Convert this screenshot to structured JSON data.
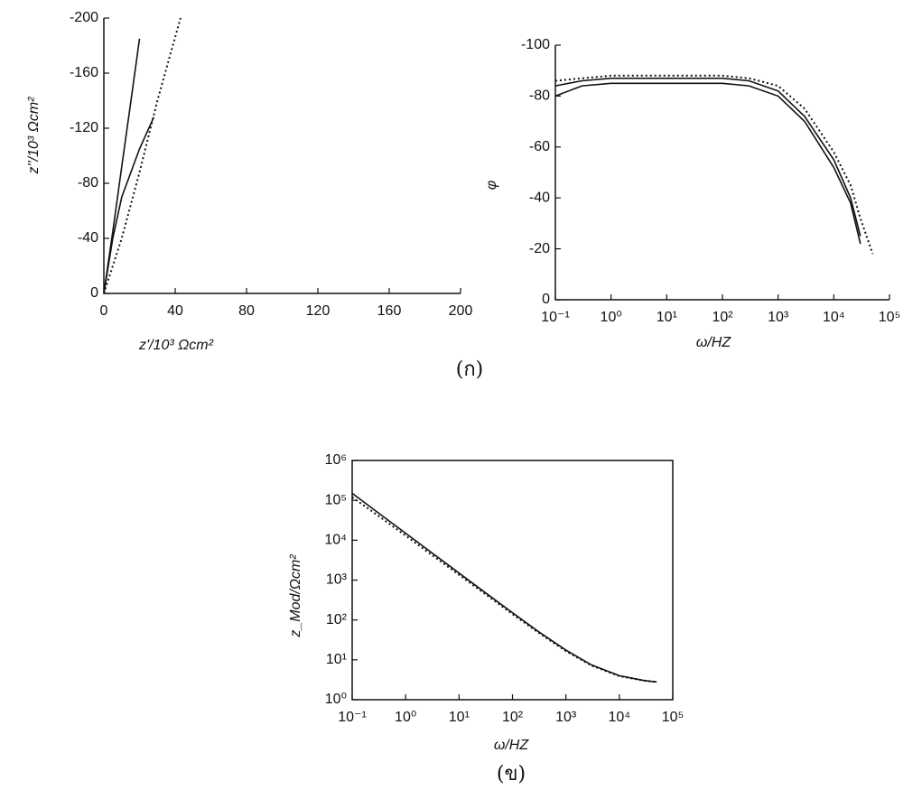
{
  "chart_data": [
    {
      "type": "line",
      "xlabel": "z'/10³ Ωcm²",
      "ylabel": "z''/10³ Ωcm²",
      "xlim": [
        0,
        200
      ],
      "xticks": [
        0,
        40,
        80,
        120,
        160,
        200
      ],
      "ylim": [
        0,
        -200
      ],
      "yticks": [
        0,
        -40,
        -80,
        -120,
        -160,
        -200
      ],
      "series": [
        {
          "color": "#111111",
          "linestyle": "solid",
          "x": [
            0,
            5,
            10,
            15,
            20
          ],
          "values": [
            0,
            -45,
            -92,
            -138,
            -185
          ]
        },
        {
          "color": "#111111",
          "linestyle": "dotted",
          "x": [
            0,
            10,
            20,
            30,
            43
          ],
          "values": [
            0,
            -40,
            -88,
            -140,
            -200
          ]
        },
        {
          "color": "#111111",
          "linestyle": "solid",
          "x": [
            0,
            5,
            10,
            20,
            28
          ],
          "values": [
            0,
            -40,
            -70,
            -105,
            -128
          ]
        }
      ]
    },
    {
      "type": "line",
      "xlabel": "ω/HZ",
      "ylabel": "φ",
      "xlog": true,
      "xlim": [
        0.1,
        100000
      ],
      "xticks": [
        {
          "value": 0.1,
          "label": "10⁻¹"
        },
        {
          "value": 1,
          "label": "10⁰"
        },
        {
          "value": 10,
          "label": "10¹"
        },
        {
          "value": 100,
          "label": "10²"
        },
        {
          "value": 1000,
          "label": "10³"
        },
        {
          "value": 10000,
          "label": "10⁴"
        },
        {
          "value": 100000,
          "label": "10⁵"
        }
      ],
      "ylim": [
        0,
        -100
      ],
      "yticks": [
        0,
        -20,
        -40,
        -60,
        -80,
        -100
      ],
      "x": [
        0.1,
        0.3,
        1,
        3,
        10,
        30,
        100,
        300,
        1000,
        3000,
        10000,
        20000,
        30000,
        50000
      ],
      "series": [
        {
          "color": "#111111",
          "linestyle": "solid",
          "values": [
            -80,
            -84,
            -85,
            -85,
            -85,
            -85,
            -85,
            -84,
            -80,
            -70,
            -52,
            -38,
            -22,
            null
          ]
        },
        {
          "color": "#111111",
          "linestyle": "solid",
          "values": [
            -84,
            -86,
            -87,
            -87,
            -87,
            -87,
            -87,
            -86,
            -82,
            -72,
            -55,
            -40,
            -25,
            null
          ]
        },
        {
          "color": "#111111",
          "linestyle": "dotted",
          "values": [
            -86,
            -87,
            -88,
            -88,
            -88,
            -88,
            -88,
            -87,
            -84,
            -75,
            -58,
            -45,
            -32,
            -18
          ]
        }
      ]
    },
    {
      "type": "line",
      "xlabel": "ω/HZ",
      "ylabel": "z_Mod/Ωcm²",
      "xlog": true,
      "ylog": true,
      "xlim": [
        0.1,
        100000
      ],
      "xticks": [
        {
          "value": 0.1,
          "label": "10⁻¹"
        },
        {
          "value": 1,
          "label": "10⁰"
        },
        {
          "value": 10,
          "label": "10¹"
        },
        {
          "value": 100,
          "label": "10²"
        },
        {
          "value": 1000,
          "label": "10³"
        },
        {
          "value": 10000,
          "label": "10⁴"
        },
        {
          "value": 100000,
          "label": "10⁵"
        }
      ],
      "ylim": [
        1,
        1000000
      ],
      "yticks": [
        {
          "value": 1,
          "label": "10⁰"
        },
        {
          "value": 10,
          "label": "10¹"
        },
        {
          "value": 100,
          "label": "10²"
        },
        {
          "value": 1000,
          "label": "10³"
        },
        {
          "value": 10000,
          "label": "10⁴"
        },
        {
          "value": 100000,
          "label": "10⁵"
        },
        {
          "value": 1000000,
          "label": "10⁶"
        }
      ],
      "x": [
        0.1,
        0.3,
        1,
        3,
        10,
        30,
        100,
        300,
        1000,
        3000,
        10000,
        30000,
        50000
      ],
      "series": [
        {
          "color": "#111111",
          "linestyle": "solid",
          "values": [
            150000,
            50000,
            15000,
            5000,
            1500,
            500,
            152,
            52,
            17.5,
            7.5,
            4,
            3,
            2.8
          ]
        },
        {
          "color": "#111111",
          "linestyle": "dotted",
          "values": [
            120000,
            42000,
            13000,
            4400,
            1350,
            460,
            140,
            49,
            16.5,
            7.2,
            3.9,
            3,
            2.8
          ]
        }
      ]
    }
  ],
  "captions": [
    "(ก)",
    "(ข)"
  ]
}
